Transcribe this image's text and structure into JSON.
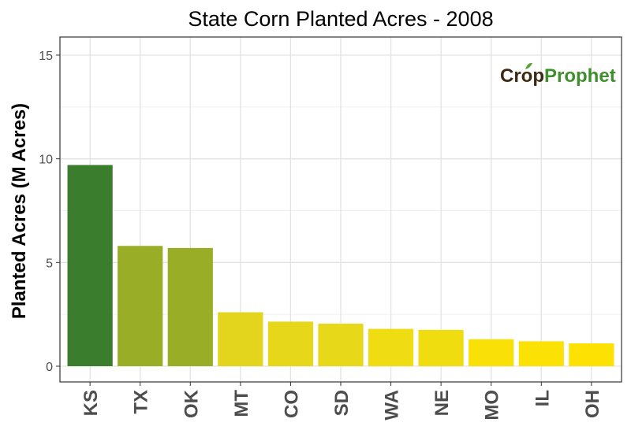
{
  "chart_data": {
    "type": "bar",
    "title": "State Corn Planted Acres - 2008",
    "xlabel": "",
    "ylabel": "Planted Acres (M Acres)",
    "ylim": [
      0,
      16
    ],
    "yticks": [
      0,
      5,
      10,
      15
    ],
    "grid": true,
    "categories": [
      "KS",
      "TX",
      "OK",
      "MT",
      "CO",
      "SD",
      "WA",
      "NE",
      "MO",
      "IL",
      "OH"
    ],
    "values": [
      9.7,
      5.8,
      5.7,
      2.6,
      2.15,
      2.05,
      1.8,
      1.75,
      1.3,
      1.2,
      1.1
    ],
    "colors": [
      "#3a7d2c",
      "#99ad26",
      "#99ad26",
      "#e3d41e",
      "#e7d71b",
      "#e8d81a",
      "#efdc12",
      "#f0dd10",
      "#f9e006",
      "#fbe104",
      "#fde102"
    ]
  },
  "logo": {
    "part1": "Cr",
    "part2": "p",
    "part3": "Prophet",
    "color_dark": "#3d2a12",
    "color_green": "#3f8f2c"
  }
}
